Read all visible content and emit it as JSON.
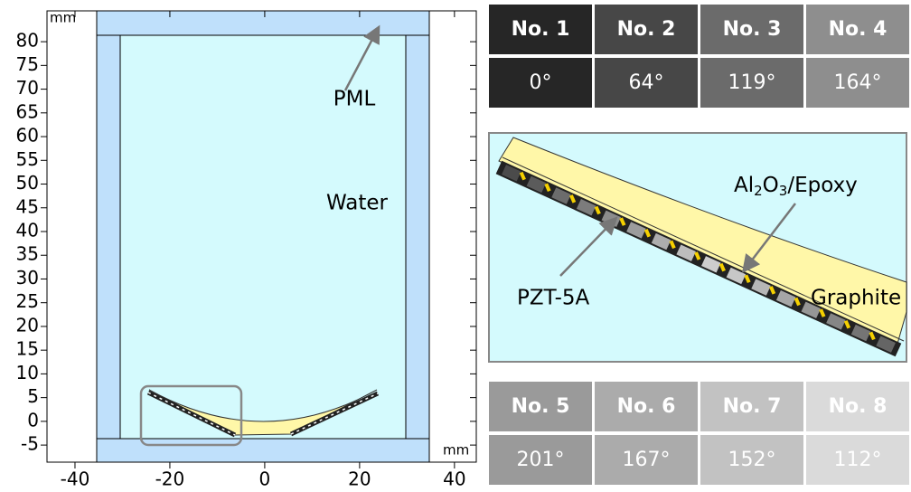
{
  "plot": {
    "x_unit": "mm",
    "y_unit": "mm",
    "xlim": [
      -45.9,
      44.6
    ],
    "ylim": [
      -8.6,
      86.5
    ],
    "xticks": [
      -40,
      -20,
      0,
      20,
      40
    ],
    "yticks": [
      -5,
      0,
      5,
      10,
      15,
      20,
      25,
      30,
      35,
      40,
      45,
      50,
      55,
      60,
      65,
      70,
      75,
      80
    ],
    "labels": {
      "pml": "PML",
      "water": "Water"
    }
  },
  "table_top": {
    "headers": [
      "No. 1",
      "No. 2",
      "No. 3",
      "No. 4"
    ],
    "angles": [
      "0°",
      "64°",
      "119°",
      "164°"
    ]
  },
  "table_bottom": {
    "headers": [
      "No. 5",
      "No. 6",
      "No. 7",
      "No. 8"
    ],
    "angles": [
      "201°",
      "167°",
      "152°",
      "112°"
    ]
  },
  "inset": {
    "matching_layer": [
      "Al",
      "2",
      "O",
      "3",
      "/Epoxy"
    ],
    "piezo": "PZT-5A",
    "backing": "Graphite"
  }
}
